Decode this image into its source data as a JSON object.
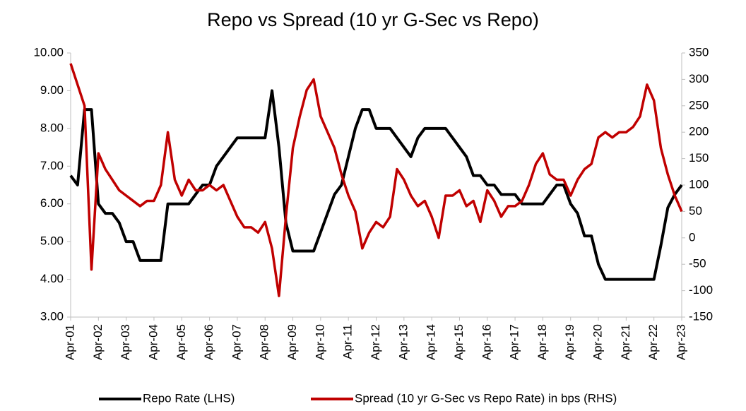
{
  "chart_data": {
    "type": "line",
    "title": "Repo vs Spread (10 yr G-Sec vs Repo)",
    "categories": [
      "Apr-01",
      null,
      null,
      null,
      "Apr-02",
      null,
      null,
      null,
      "Apr-03",
      null,
      null,
      null,
      "Apr-04",
      null,
      null,
      null,
      "Apr-05",
      null,
      null,
      null,
      "Apr-06",
      null,
      null,
      null,
      "Apr-07",
      null,
      null,
      null,
      "Apr-08",
      null,
      null,
      null,
      "Apr-09",
      null,
      null,
      null,
      "Apr-10",
      null,
      null,
      null,
      "Apr-11",
      null,
      null,
      null,
      "Apr-12",
      null,
      null,
      null,
      "Apr-13",
      null,
      null,
      null,
      "Apr-14",
      null,
      null,
      null,
      "Apr-15",
      null,
      null,
      null,
      "Apr-16",
      null,
      null,
      null,
      "Apr-17",
      null,
      null,
      null,
      "Apr-18",
      null,
      null,
      null,
      "Apr-19",
      null,
      null,
      null,
      "Apr-20",
      null,
      null,
      null,
      "Apr-21",
      null,
      null,
      null,
      "Apr-22",
      null,
      null,
      null,
      "Apr-23"
    ],
    "series": [
      {
        "name": "Repo Rate (LHS)",
        "color": "#000000",
        "axis": "y",
        "values": [
          6.75,
          6.5,
          8.5,
          8.5,
          6.0,
          5.75,
          5.75,
          5.5,
          5.0,
          5.0,
          4.5,
          4.5,
          4.5,
          4.5,
          6.0,
          6.0,
          6.0,
          6.0,
          6.25,
          6.5,
          6.5,
          7.0,
          7.25,
          7.5,
          7.75,
          7.75,
          7.75,
          7.75,
          7.75,
          9.0,
          7.5,
          5.5,
          4.75,
          4.75,
          4.75,
          4.75,
          5.25,
          5.75,
          6.25,
          6.5,
          7.25,
          8.0,
          8.5,
          8.5,
          8.0,
          8.0,
          8.0,
          7.75,
          7.5,
          7.25,
          7.75,
          8.0,
          8.0,
          8.0,
          8.0,
          7.75,
          7.5,
          7.25,
          6.75,
          6.75,
          6.5,
          6.5,
          6.25,
          6.25,
          6.25,
          6.0,
          6.0,
          6.0,
          6.0,
          6.25,
          6.5,
          6.5,
          6.0,
          5.75,
          5.15,
          5.15,
          4.4,
          4.0,
          4.0,
          4.0,
          4.0,
          4.0,
          4.0,
          4.0,
          4.0,
          4.9,
          5.9,
          6.25,
          6.5
        ]
      },
      {
        "name": "Spread (10 yr G-Sec vs Repo Rate) in bps (RHS)",
        "color": "#c00000",
        "axis": "y2",
        "values": [
          330,
          290,
          250,
          -60,
          160,
          130,
          110,
          90,
          80,
          70,
          60,
          70,
          70,
          100,
          200,
          110,
          80,
          110,
          90,
          90,
          100,
          90,
          100,
          70,
          40,
          20,
          20,
          10,
          30,
          -20,
          -110,
          40,
          170,
          230,
          280,
          300,
          230,
          200,
          170,
          120,
          80,
          50,
          -20,
          10,
          30,
          20,
          40,
          130,
          110,
          80,
          60,
          70,
          40,
          0,
          80,
          80,
          90,
          60,
          70,
          30,
          90,
          70,
          40,
          60,
          60,
          70,
          100,
          140,
          160,
          120,
          110,
          110,
          80,
          110,
          130,
          140,
          190,
          200,
          190,
          200,
          200,
          210,
          230,
          290,
          260,
          170,
          120,
          80,
          50
        ]
      }
    ],
    "ylim": [
      3,
      10
    ],
    "yticks": [
      {
        "value": 3,
        "label": "3.00"
      },
      {
        "value": 4,
        "label": "4.00"
      },
      {
        "value": 5,
        "label": "5.00"
      },
      {
        "value": 6,
        "label": "6.00"
      },
      {
        "value": 7,
        "label": "7.00"
      },
      {
        "value": 8,
        "label": "8.00"
      },
      {
        "value": 9,
        "label": "9.00"
      },
      {
        "value": 10,
        "label": "10.00"
      }
    ],
    "y2lim": [
      -150,
      350
    ],
    "y2ticks": [
      -150,
      -100,
      -50,
      0,
      50,
      100,
      150,
      200,
      250,
      300,
      350
    ],
    "legend": "bottom"
  }
}
